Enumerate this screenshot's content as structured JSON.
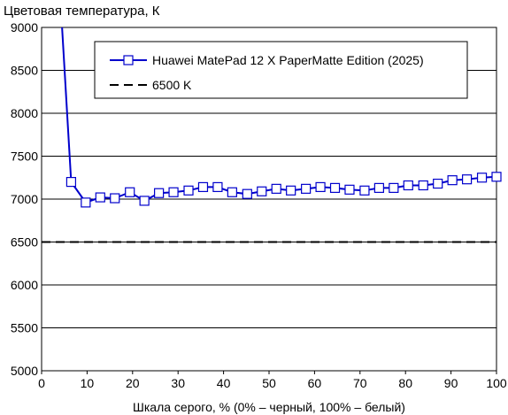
{
  "chart_data": {
    "type": "line",
    "title": "Цветовая температура, К",
    "xlabel": "Шкала серого, % (0% – черный, 100% – белый)",
    "ylabel": "",
    "xlim": [
      0,
      100
    ],
    "ylim": [
      5000,
      9000
    ],
    "xticks": [
      0,
      10,
      20,
      30,
      40,
      50,
      60,
      70,
      80,
      90,
      100
    ],
    "yticks": [
      5000,
      5500,
      6000,
      6500,
      7000,
      7500,
      8000,
      8500,
      9000
    ],
    "grid": "horizontal",
    "legend_position": "top-right",
    "series": [
      {
        "name": "Huawei MatePad 12 X PaperMatte Edition (2025)",
        "color": "#0000cc",
        "marker": "square",
        "x": [
          4.5,
          6.5,
          9.7,
          12.9,
          16.1,
          19.4,
          22.6,
          25.8,
          29.0,
          32.3,
          35.5,
          38.7,
          41.9,
          45.2,
          48.4,
          51.6,
          54.8,
          58.1,
          61.3,
          64.5,
          67.7,
          71.0,
          74.2,
          77.4,
          80.6,
          83.9,
          87.1,
          90.3,
          93.5,
          96.8,
          100.0
        ],
        "y": [
          9000,
          7200,
          6960,
          7020,
          7010,
          7080,
          6980,
          7070,
          7080,
          7100,
          7140,
          7140,
          7080,
          7060,
          7090,
          7120,
          7100,
          7120,
          7140,
          7130,
          7110,
          7100,
          7130,
          7130,
          7160,
          7160,
          7180,
          7220,
          7230,
          7250,
          7260
        ],
        "markers_from_index": 1
      },
      {
        "name": "6500 K",
        "color": "#000000",
        "dash": "dashed",
        "x": [
          0,
          100
        ],
        "y": [
          6500,
          6500
        ]
      }
    ]
  }
}
